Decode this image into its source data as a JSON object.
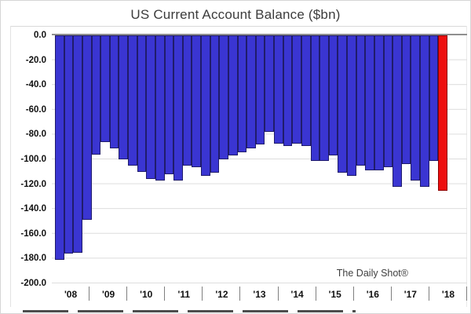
{
  "chart_data": {
    "type": "bar",
    "title": "US Current Account Balance ($bn)",
    "watermark": "The Daily Shot®",
    "categories": [
      "'08",
      "'09",
      "'10",
      "'11",
      "'12",
      "'13",
      "'14",
      "'15",
      "'16",
      "'17",
      "'18"
    ],
    "bars_per_year": 4,
    "values": [
      -181,
      -176,
      -175,
      -149,
      -96,
      -86,
      -91,
      -100,
      -105,
      -110,
      -116,
      -117,
      -112,
      -117,
      -105,
      -106,
      -113,
      -111,
      -100,
      -97,
      -94,
      -91,
      -88,
      -78,
      -87,
      -89,
      -87,
      -89,
      -101,
      -101,
      -97,
      -111,
      -113,
      -105,
      -109,
      -109,
      -106,
      -122,
      -104,
      -117,
      -122,
      -101,
      -125
    ],
    "highlight_index": 42,
    "y_ticks": [
      "0.0",
      "-20.0",
      "-40.0",
      "-60.0",
      "-80.0",
      "-100.0",
      "-120.0",
      "-140.0",
      "-160.0",
      "-180.0",
      "-200.0"
    ],
    "ylim": [
      0,
      -200
    ],
    "grid": true,
    "legend_position": "none",
    "colors": {
      "bar_fill": "#3a35d2",
      "bar_border": "#201c6b",
      "highlight_fill": "#ed0e0e",
      "highlight_border": "#8b0000",
      "gridline": "#dcdcdc",
      "zero_line": "#8f8f8f",
      "axis_text": "#111111",
      "title_text": "#3c3c3c"
    }
  }
}
